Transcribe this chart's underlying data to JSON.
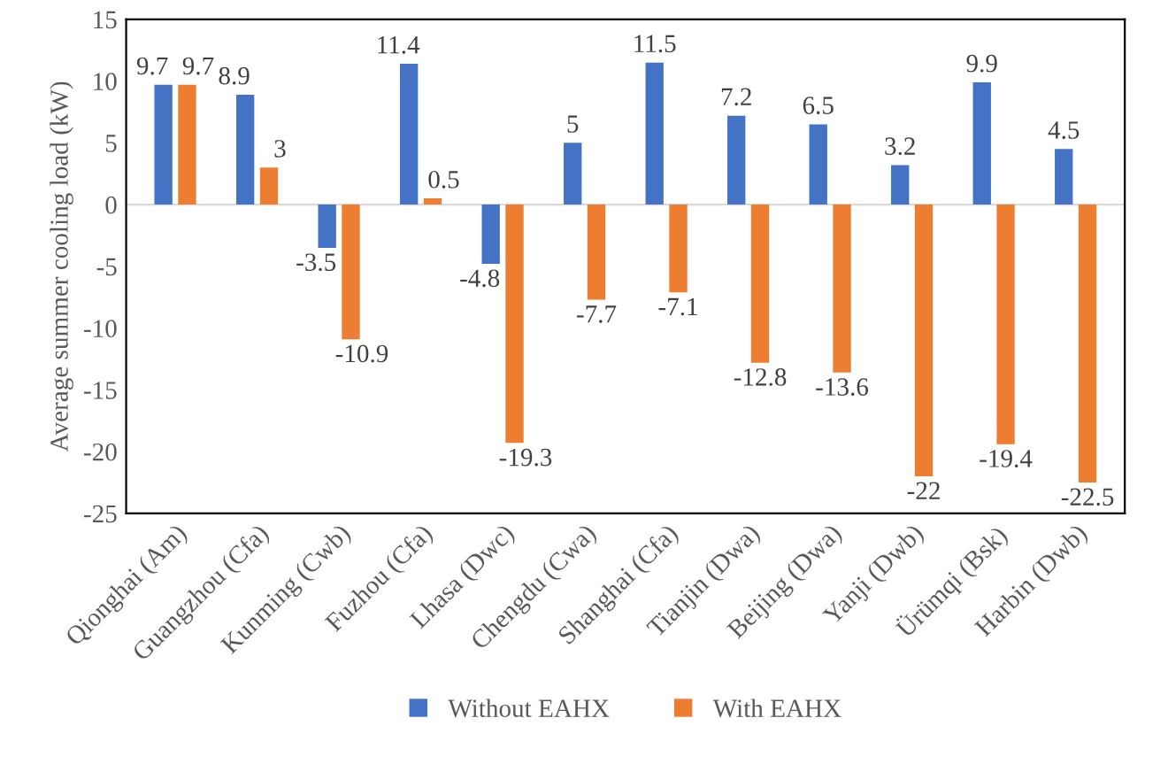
{
  "chart_data": {
    "type": "bar",
    "ylabel": "Average summer cooling load (kW)",
    "categories": [
      "Qionghai (Am)",
      "Guangzhou (Cfa)",
      "Kunming (Cwb)",
      "Fuzhou (Cfa)",
      "Lhasa (Dwc)",
      "Chengdu (Cwa)",
      "Shanghai (Cfa)",
      "Tianjin (Dwa)",
      "Beijing (Dwa)",
      "Yanji (Dwb)",
      "Ürümqi (Bsk)",
      "Harbin (Dwb)"
    ],
    "series": [
      {
        "name": "Without EAHX",
        "color": "#4472c4",
        "values": [
          9.7,
          8.9,
          -3.5,
          11.4,
          -4.8,
          5,
          11.5,
          7.2,
          6.5,
          3.2,
          9.9,
          4.5
        ]
      },
      {
        "name": "With EAHX",
        "color": "#ed7d31",
        "values": [
          9.7,
          3,
          -10.9,
          0.5,
          -19.3,
          -7.7,
          -7.1,
          -12.8,
          -13.6,
          -22,
          -19.4,
          -22.5
        ]
      }
    ],
    "ylim": [
      -25,
      15
    ],
    "yticks": [
      -25,
      -20,
      -15,
      -10,
      -5,
      0,
      5,
      10,
      15
    ],
    "legend": "bottom",
    "data_labels": true
  }
}
